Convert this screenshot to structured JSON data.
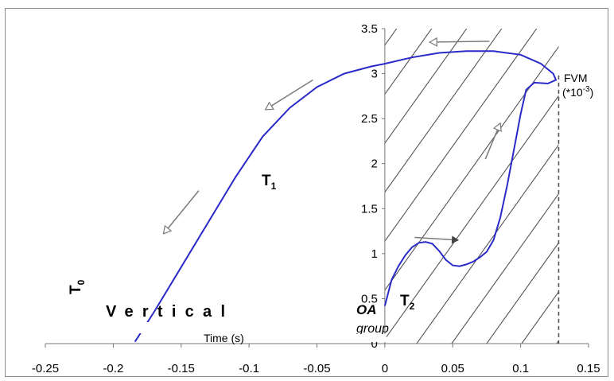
{
  "chart_data": {
    "type": "line",
    "title": "",
    "xlabel": "Time (s)",
    "ylabel": "FVM (*10-3)",
    "xlim": [
      -0.25,
      0.15
    ],
    "ylim": [
      0,
      3.5
    ],
    "x_ticks": [
      "-0.25",
      "-0.2",
      "-0.15",
      "-0.1",
      "-0.05",
      "0",
      "0.05",
      "0.1",
      "0.15"
    ],
    "y_ticks": [
      "0",
      "0.5",
      "1",
      "1.5",
      "2",
      "2.5",
      "3",
      "3.5"
    ],
    "grid": false,
    "legend": "none",
    "series": [
      {
        "color": "#2a2ac8",
        "points": [
          [
            -0.184,
            0.02
          ],
          [
            -0.17,
            0.35
          ],
          [
            -0.15,
            0.85
          ],
          [
            -0.13,
            1.35
          ],
          [
            -0.11,
            1.85
          ],
          [
            -0.09,
            2.3
          ],
          [
            -0.07,
            2.62
          ],
          [
            -0.05,
            2.85
          ],
          [
            -0.03,
            3.0
          ],
          [
            -0.01,
            3.08
          ],
          [
            0.0,
            3.11
          ],
          [
            0.02,
            3.18
          ],
          [
            0.04,
            3.23
          ],
          [
            0.06,
            3.25
          ],
          [
            0.08,
            3.25
          ],
          [
            0.1,
            3.21
          ],
          [
            0.115,
            3.11
          ],
          [
            0.124,
            3.0
          ],
          [
            0.126,
            2.93
          ],
          [
            0.12,
            2.89
          ],
          [
            0.11,
            2.9
          ],
          [
            0.104,
            2.82
          ],
          [
            0.1,
            2.55
          ],
          [
            0.095,
            2.15
          ],
          [
            0.09,
            1.75
          ],
          [
            0.085,
            1.4
          ],
          [
            0.08,
            1.15
          ],
          [
            0.075,
            1.02
          ],
          [
            0.07,
            0.96
          ],
          [
            0.065,
            0.91
          ],
          [
            0.06,
            0.88
          ],
          [
            0.055,
            0.86
          ],
          [
            0.05,
            0.87
          ],
          [
            0.045,
            0.93
          ],
          [
            0.04,
            1.03
          ],
          [
            0.035,
            1.11
          ],
          [
            0.03,
            1.13
          ],
          [
            0.025,
            1.12
          ],
          [
            0.02,
            1.07
          ],
          [
            0.015,
            0.98
          ],
          [
            0.01,
            0.86
          ],
          [
            0.005,
            0.71
          ],
          [
            0.0,
            0.42
          ]
        ]
      }
    ],
    "hatched_region": {
      "x": [
        0.0,
        0.128
      ],
      "label": "OA group"
    },
    "reference_line": {
      "x": 0.128,
      "style": "dashed",
      "label": "FVM (*10-3)"
    },
    "annotations": {
      "t0": "T0",
      "t1": "T1",
      "t2": "T2",
      "vertical": "Vertical",
      "oa": "OA",
      "group": "group",
      "fvm_label": "FVM",
      "fvm_unit": "(*10-3)"
    },
    "arrows": [
      {
        "from": [
          0.077,
          3.36
        ],
        "to": [
          0.033,
          3.35
        ]
      },
      {
        "from": [
          -0.053,
          2.93
        ],
        "to": [
          -0.088,
          2.6
        ]
      },
      {
        "from": [
          -0.137,
          1.7
        ],
        "to": [
          -0.163,
          1.22
        ]
      },
      {
        "from": [
          0.074,
          2.05
        ],
        "to": [
          0.085,
          2.45
        ]
      },
      {
        "from": [
          0.022,
          1.18
        ],
        "to": [
          0.054,
          1.15
        ]
      }
    ]
  }
}
